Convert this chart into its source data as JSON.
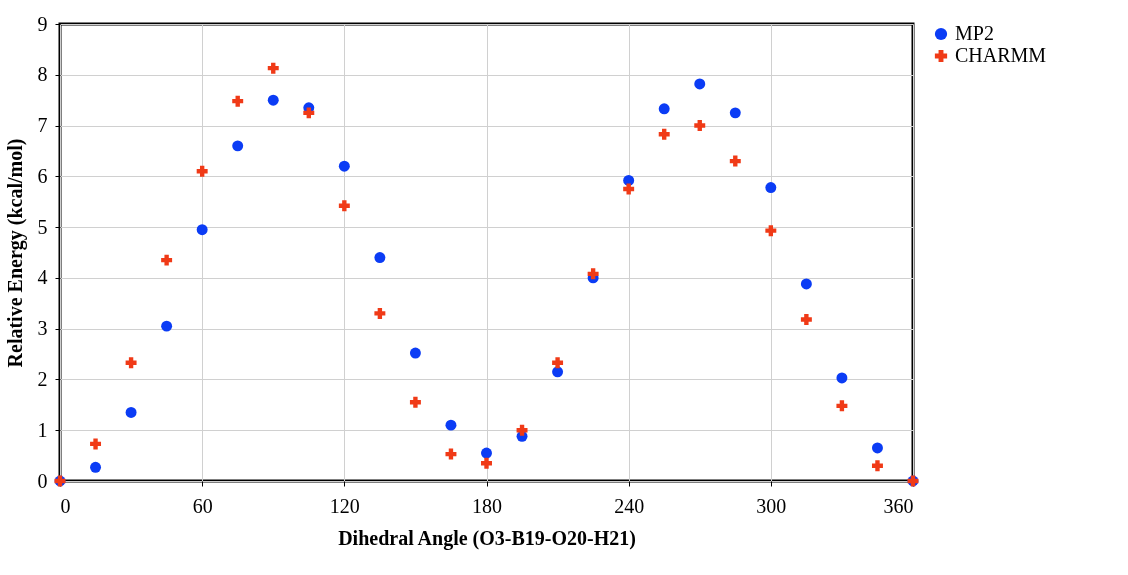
{
  "chart_data": {
    "type": "scatter",
    "xlabel": "Dihedral Angle (O3-B19-O20-H21)",
    "ylabel": "Relative Energy (kcal/mol)",
    "x": [
      0,
      15,
      30,
      45,
      60,
      75,
      90,
      105,
      120,
      135,
      150,
      165,
      180,
      195,
      210,
      225,
      240,
      255,
      270,
      285,
      300,
      315,
      330,
      345,
      360
    ],
    "series": [
      {
        "name": "MP2",
        "color": "#0b3cf5",
        "marker": "circle",
        "values": [
          0,
          0.27,
          1.35,
          3.05,
          4.95,
          6.6,
          7.5,
          7.35,
          6.2,
          4.4,
          2.52,
          1.1,
          0.55,
          0.88,
          2.15,
          4.0,
          5.92,
          7.33,
          7.82,
          7.25,
          5.78,
          3.88,
          2.03,
          0.65,
          0
        ]
      },
      {
        "name": "CHARMM",
        "color": "#f03a17",
        "marker": "cross",
        "values": [
          0,
          0.73,
          2.33,
          4.35,
          6.1,
          7.48,
          8.13,
          7.25,
          5.42,
          3.3,
          1.55,
          0.53,
          0.35,
          1.0,
          2.33,
          4.08,
          5.75,
          6.83,
          7.0,
          6.3,
          4.93,
          3.18,
          1.48,
          0.3,
          0
        ]
      }
    ],
    "xlim": [
      0,
      360
    ],
    "xticks": [
      0,
      60,
      120,
      180,
      240,
      300,
      360
    ],
    "ylim": [
      0,
      9
    ],
    "yticks": [
      0,
      1,
      2,
      3,
      4,
      5,
      6,
      7,
      8,
      9
    ],
    "grid": true,
    "legend": "right"
  }
}
